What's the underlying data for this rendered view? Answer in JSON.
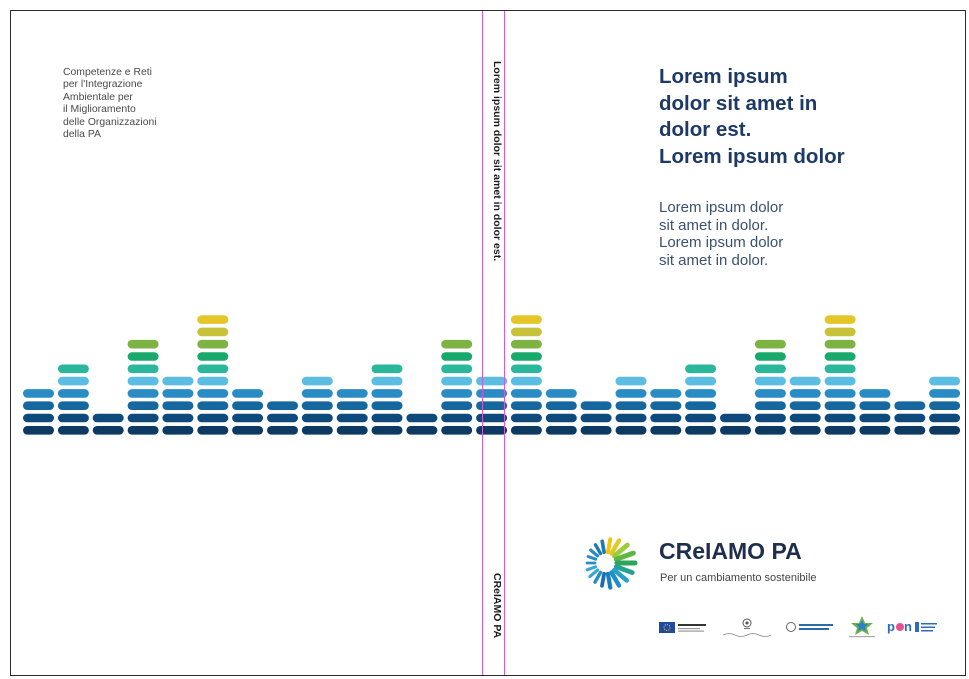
{
  "back_cover": {
    "lines": [
      "Competenze e Reti",
      "per l'Integrazione",
      "Ambientale per",
      "il Miglioramento",
      "delle Organizzazioni",
      "della PA"
    ]
  },
  "spine": {
    "title": "Lorem ipsum dolor sit amet in dolor est.",
    "brand": "CReIAMO PA"
  },
  "front_cover": {
    "headline": [
      "Lorem ipsum",
      "dolor sit amet in",
      "dolor est.",
      "Lorem ipsum dolor"
    ],
    "subtitle": [
      "Lorem ipsum dolor",
      "sit amet in dolor.",
      "Lorem ipsum dolor",
      "sit amet in dolor."
    ],
    "brand_name": "CReIAMO PA",
    "tagline": "Per un cambiamento sostenibile"
  },
  "equalizer": {
    "levels": [
      4,
      6,
      2,
      8,
      5,
      10,
      4,
      3,
      5,
      4,
      6,
      2,
      8,
      5,
      10,
      4,
      3,
      5,
      4,
      6,
      2,
      8,
      5,
      10,
      4,
      3,
      5
    ],
    "colors": [
      "#0d3a63",
      "#0e4a7c",
      "#15679e",
      "#2a8cc4",
      "#5cbde2",
      "#2bb79c",
      "#1aa96c",
      "#7cb342",
      "#c7c23a",
      "#e5c628"
    ]
  },
  "partners": [
    "UNIONE EUROPEA",
    "Repubblica Italiana",
    "Ministero",
    "Dipartimento della Funzione Pubblica",
    "Agenzia",
    "PON Governance"
  ]
}
